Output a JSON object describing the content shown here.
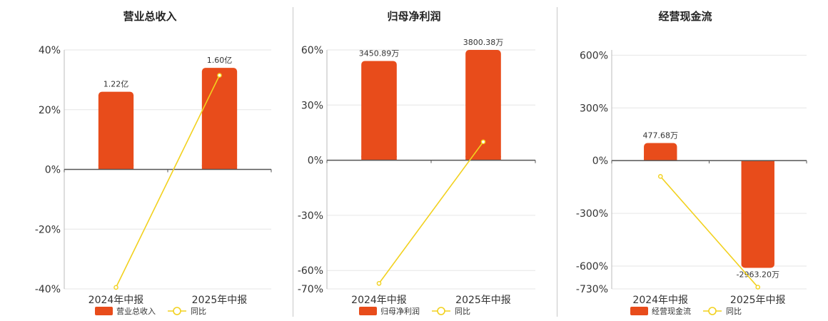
{
  "colors": {
    "bar": "#e84c1b",
    "line": "#f2d11e",
    "grid": "#e6e6e6",
    "axis": "#555555"
  },
  "chart_data": [
    {
      "type": "bar",
      "title": "营业总收入",
      "categories": [
        "2024年中报",
        "2025年中报"
      ],
      "series": [
        {
          "name": "营业总收入",
          "type": "bar",
          "values": [
            26,
            34
          ],
          "labels": [
            "1.22亿",
            "1.60亿"
          ]
        },
        {
          "name": "同比",
          "type": "line",
          "values": [
            -39.5,
            31.5
          ]
        }
      ],
      "ylim": [
        -40,
        40
      ],
      "yticks": [
        40,
        20,
        0,
        -20,
        -40
      ],
      "ytick_labels": [
        "40%",
        "20%",
        "0%",
        "-20%",
        "-40%"
      ],
      "legend": "bottom"
    },
    {
      "type": "bar",
      "title": "归母净利润",
      "categories": [
        "2024年中报",
        "2025年中报"
      ],
      "series": [
        {
          "name": "归母净利润",
          "type": "bar",
          "values": [
            54,
            60
          ],
          "labels": [
            "3450.89万",
            "3800.38万"
          ]
        },
        {
          "name": "同比",
          "type": "line",
          "values": [
            -67,
            10
          ]
        }
      ],
      "ylim": [
        -70,
        60
      ],
      "yticks": [
        60,
        30,
        0,
        -30,
        -60,
        -70
      ],
      "ytick_labels": [
        "60%",
        "30%",
        "0%",
        "-30%",
        "-60%",
        "-70%"
      ],
      "legend": "bottom"
    },
    {
      "type": "bar",
      "title": "经营现金流",
      "categories": [
        "2024年中报",
        "2025年中报"
      ],
      "series": [
        {
          "name": "经营现金流",
          "type": "bar",
          "values": [
            100,
            -610
          ],
          "labels": [
            "477.68万",
            "-2963.20万"
          ]
        },
        {
          "name": "同比",
          "type": "line",
          "values": [
            -90,
            -720
          ]
        }
      ],
      "ylim": [
        -730,
        630
      ],
      "yticks": [
        600,
        300,
        0,
        -300,
        -600,
        -730
      ],
      "ytick_labels": [
        "600%",
        "300%",
        "0%",
        "-300%",
        "-600%",
        "-730%"
      ],
      "legend": "bottom"
    }
  ]
}
